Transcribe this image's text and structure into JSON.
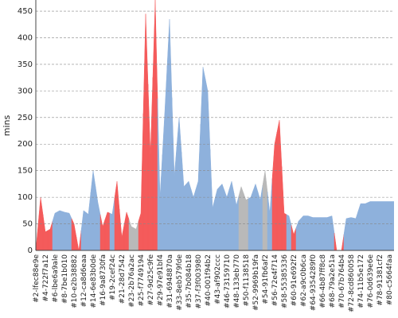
{
  "chart_data": {
    "type": "area",
    "ylabel": "mins",
    "categories": [
      "#2-lfec88e9e",
      null,
      "#4-722f7a12",
      null,
      "#6-lbe6a9ale",
      null,
      "#8-7be1b010",
      null,
      "#10-e2b38882",
      null,
      "#12-ca8d6eaa",
      null,
      "#14-6e83b0de",
      null,
      "#16-9a8730fa",
      null,
      "#19-2cef24c",
      null,
      "#21-28d7542",
      null,
      "#23-2b76a2ac",
      null,
      "#25-f7749194",
      null,
      "#27-9d25c9fe",
      null,
      "#29-97e91bf4",
      null,
      "#31-6948870a",
      null,
      "#33-8eb579fde",
      null,
      "#35-7b084b18",
      null,
      "#37-f3f003980",
      null,
      "#40-001f94b2",
      null,
      "#43-af902ccc",
      null,
      "#46-73159710",
      null,
      "#48-133eb770",
      null,
      "#50-f1138518",
      null,
      "#52-9969b19fa",
      null,
      "#54-91fb6af2",
      null,
      "#56-72e4f714",
      null,
      "#58-55385336",
      null,
      "#60-91e692f2",
      null,
      "#62-a9c0b6ca",
      null,
      "#64-9354289f0",
      null,
      "#66-4b87ff8c8",
      null,
      "#68-79a2e51a",
      null,
      "#70-67b764b4",
      null,
      "#72-8cd860058",
      null,
      "#74-11b5e172",
      null,
      "#76-0d639e6e",
      null,
      "#78-91381cf2",
      null,
      "#80-c5664faa",
      null
    ],
    "values": [
      0,
      100,
      35,
      40,
      70,
      75,
      72,
      70,
      50,
      0,
      75,
      68,
      150,
      90,
      45,
      72,
      68,
      130,
      25,
      72,
      45,
      40,
      70,
      445,
      180,
      471,
      100,
      260,
      435,
      140,
      250,
      120,
      130,
      100,
      130,
      345,
      300,
      80,
      115,
      125,
      100,
      130,
      85,
      120,
      95,
      100,
      125,
      95,
      150,
      70,
      200,
      245,
      70,
      65,
      30,
      55,
      65,
      65,
      62,
      62,
      62,
      62,
      65,
      0,
      0,
      60,
      62,
      60,
      88,
      88,
      92,
      92,
      92,
      92,
      92,
      92
    ],
    "point_colors": [
      "#f45b5b",
      "#f45b5b",
      "#f45b5b",
      "#f45b5b",
      "#8eb1dc",
      "#8eb1dc",
      "#8eb1dc",
      "#8eb1dc",
      "#f45b5b",
      "#f45b5b",
      "#8eb1dc",
      "#8eb1dc",
      "#8eb1dc",
      "#8eb1dc",
      "#f45b5b",
      "#f45b5b",
      "#8eb1dc",
      "#f45b5b",
      "#f45b5b",
      "#f45b5b",
      "#b9b9b9",
      "#b9b9b9",
      "#f45b5b",
      "#f45b5b",
      "#f45b5b",
      "#f45b5b",
      "#8eb1dc",
      "#8eb1dc",
      "#8eb1dc",
      "#8eb1dc",
      "#8eb1dc",
      "#8eb1dc",
      "#8eb1dc",
      "#8eb1dc",
      "#8eb1dc",
      "#8eb1dc",
      "#8eb1dc",
      "#8eb1dc",
      "#8eb1dc",
      "#8eb1dc",
      "#8eb1dc",
      "#8eb1dc",
      "#8eb1dc",
      "#b9b9b9",
      "#b9b9b9",
      "#8eb1dc",
      "#8eb1dc",
      "#8eb1dc",
      "#b9b9b9",
      "#8eb1dc",
      "#f45b5b",
      "#f45b5b",
      "#f45b5b",
      "#8eb1dc",
      "#f45b5b",
      "#8eb1dc",
      "#8eb1dc",
      "#8eb1dc",
      "#8eb1dc",
      "#8eb1dc",
      "#8eb1dc",
      "#8eb1dc",
      "#8eb1dc",
      "#f45b5b",
      "#f45b5b",
      "#8eb1dc",
      "#8eb1dc",
      "#8eb1dc",
      "#8eb1dc",
      "#8eb1dc",
      "#8eb1dc",
      "#8eb1dc",
      "#8eb1dc",
      "#8eb1dc",
      "#8eb1dc",
      "#8eb1dc"
    ],
    "ylim": [
      0,
      471
    ],
    "yticks": [
      0,
      50,
      100,
      150,
      200,
      250,
      300,
      350,
      400,
      450
    ],
    "grid": true
  }
}
